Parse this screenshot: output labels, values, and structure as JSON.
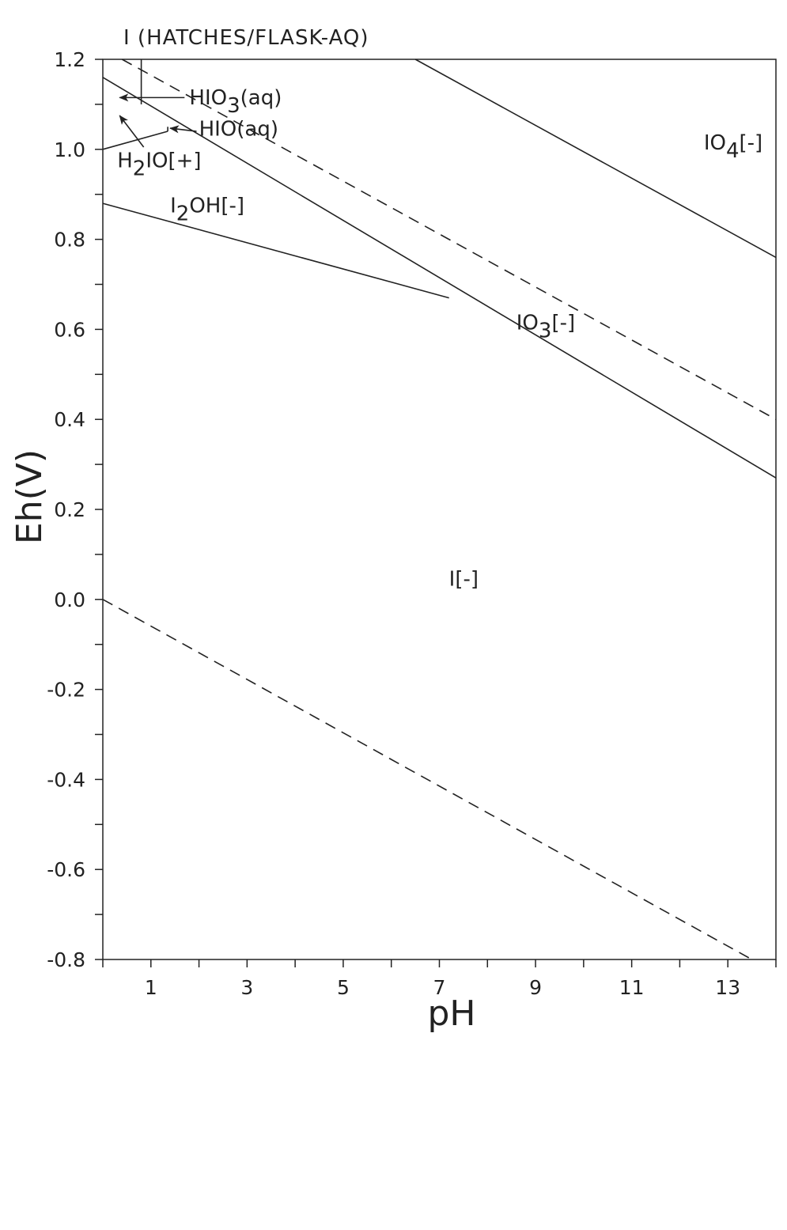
{
  "chart_data": {
    "type": "line",
    "title": "I (HATCHES/FLASK-AQ)",
    "xlabel": "pH",
    "ylabel": "Eh(V)",
    "xlim": [
      0,
      14
    ],
    "ylim": [
      -0.8,
      1.2
    ],
    "x_tick_labels": [
      "1",
      "3",
      "5",
      "7",
      "9",
      "11",
      "13"
    ],
    "x_tick_values": [
      1,
      3,
      5,
      7,
      9,
      11,
      13
    ],
    "y_tick_labels": [
      "1.2",
      "1.0",
      "0.8",
      "0.6",
      "0.4",
      "0.2",
      "0.0",
      "-0.2",
      "-0.4",
      "-0.6",
      "-0.8"
    ],
    "y_tick_values": [
      1.2,
      1.0,
      0.8,
      0.6,
      0.4,
      0.2,
      0.0,
      -0.2,
      -0.4,
      -0.6,
      -0.8
    ],
    "grid": false,
    "series": [
      {
        "style": "solid",
        "points": [
          [
            6.5,
            1.2
          ],
          [
            14,
            0.76
          ]
        ]
      },
      {
        "style": "solid",
        "points": [
          [
            0,
            1.16
          ],
          [
            14,
            0.27
          ]
        ]
      },
      {
        "style": "solid",
        "points": [
          [
            0,
            0.88
          ],
          [
            7.2,
            0.67
          ]
        ]
      },
      {
        "style": "solid",
        "points": [
          [
            0,
            1.0
          ],
          [
            1.35,
            1.04
          ]
        ]
      },
      {
        "style": "solid",
        "points": [
          [
            0.8,
            1.2
          ],
          [
            0.8,
            1.1
          ]
        ]
      },
      {
        "style": "solid",
        "points": [
          [
            1.35,
            1.04
          ],
          [
            1.35,
            1.05
          ]
        ]
      },
      {
        "style": "dashed",
        "points": [
          [
            0.4,
            1.2
          ],
          [
            14,
            0.4
          ]
        ]
      },
      {
        "style": "dashed",
        "points": [
          [
            0,
            0.0
          ],
          [
            13.5,
            -0.8
          ]
        ]
      }
    ],
    "regions": [
      {
        "label": "IO4[-]",
        "base": "IO",
        "sub": "4",
        "tail": "[-]",
        "x": 12.5,
        "y": 1.0
      },
      {
        "label": "IO3[-]",
        "base": "IO",
        "sub": "3",
        "tail": "[-]",
        "x": 8.6,
        "y": 0.6
      },
      {
        "label": "I2OH[-]",
        "base": "I",
        "sub": "2",
        "tail": "OH[-]",
        "x": 1.4,
        "y": 0.86
      },
      {
        "label": "I[-]",
        "base": "I[-]",
        "sub": "",
        "tail": "",
        "x": 7.2,
        "y": 0.03
      }
    ],
    "annotations": [
      {
        "label": "HIO3(aq)",
        "base": "HIO",
        "sub": "3",
        "tail": "(aq)",
        "text_x": 1.8,
        "text_y": 1.1,
        "arrow_from": [
          1.7,
          1.115
        ],
        "arrow_to": [
          0.35,
          1.115
        ]
      },
      {
        "label": "HIO(aq)",
        "base": "HIO(aq)",
        "sub": "",
        "tail": "",
        "text_x": 2.0,
        "text_y": 1.03,
        "arrow_from": [
          1.95,
          1.04
        ],
        "arrow_to": [
          1.4,
          1.047
        ]
      },
      {
        "label": "H2IO[+]",
        "base": "H",
        "sub": "2",
        "tail": "IO[+]",
        "text_x": 0.3,
        "text_y": 0.96,
        "arrow_from": [
          0.85,
          1.005
        ],
        "arrow_to": [
          0.35,
          1.075
        ]
      }
    ]
  }
}
